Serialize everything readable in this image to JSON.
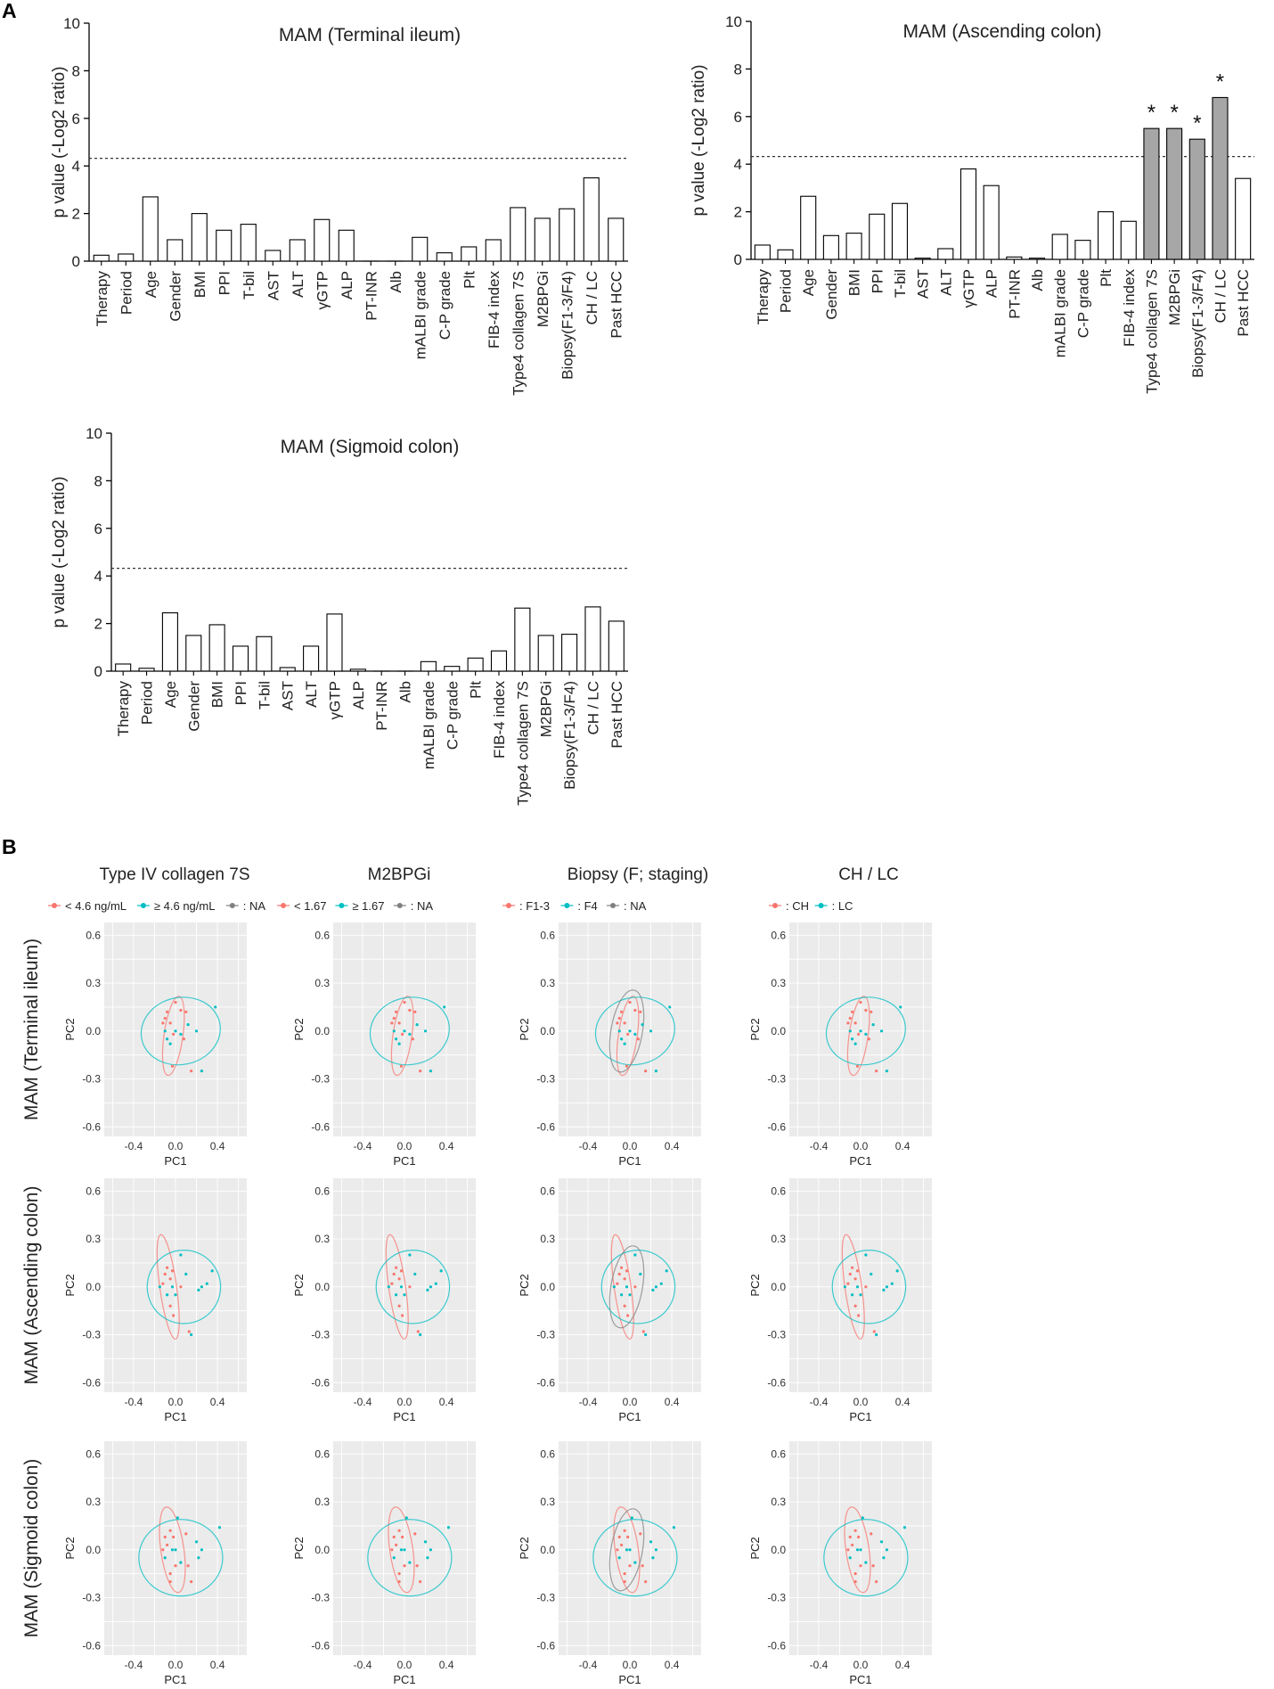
{
  "panel_a_label": "A",
  "panel_b_label": "B",
  "colors": {
    "red": "#f8766d",
    "teal": "#00bfc4",
    "gray": "#808080",
    "significant_bar": "#a6a6a6",
    "plot_bg": "#ebebeb",
    "grid": "#ffffff"
  },
  "bar_common": {
    "ylabel": "p value (-Log2 ratio)",
    "yticks": [
      "0",
      "2",
      "4",
      "6",
      "8",
      "10"
    ],
    "ylim": [
      0,
      10
    ],
    "threshold": 4.32,
    "categories": [
      "Therapy",
      "Period",
      "Age",
      "Gender",
      "BMI",
      "PPI",
      "T-bil",
      "AST",
      "ALT",
      "γGTP",
      "ALP",
      "PT-INR",
      "Alb",
      "mALBI grade",
      "C-P grade",
      "Plt",
      "FIB-4 index",
      "Type4 collagen 7S",
      "M2BPGi",
      "Biopsy(F1-3/F4)",
      "CH / LC",
      "Past HCC"
    ]
  },
  "pca_common": {
    "xlabel": "PC1",
    "ylabel": "PC2",
    "xticks": [
      "-0.4",
      "0.0",
      "0.4"
    ],
    "yticks": [
      "0.6",
      "0.3",
      "0.0",
      "-0.3",
      "-0.6"
    ]
  },
  "chart_data": [
    {
      "type": "bar",
      "title": "MAM (Terminal ileum)",
      "values": [
        0.25,
        0.3,
        2.7,
        0.9,
        2.0,
        1.3,
        1.55,
        0.45,
        0.9,
        1.75,
        1.3,
        0,
        0,
        1.0,
        0.35,
        0.6,
        0.9,
        2.25,
        1.8,
        2.2,
        3.5,
        1.8
      ],
      "significant": [
        false,
        false,
        false,
        false,
        false,
        false,
        false,
        false,
        false,
        false,
        false,
        false,
        false,
        false,
        false,
        false,
        false,
        false,
        false,
        false,
        false,
        false
      ]
    },
    {
      "type": "bar",
      "title": "MAM (Ascending colon)",
      "values": [
        0.6,
        0.4,
        2.65,
        1.0,
        1.1,
        1.9,
        2.35,
        0.05,
        0.45,
        3.8,
        3.1,
        0.1,
        0.05,
        1.05,
        0.8,
        2.0,
        1.6,
        5.5,
        5.5,
        5.05,
        6.8,
        3.4
      ],
      "significant": [
        false,
        false,
        false,
        false,
        false,
        false,
        false,
        false,
        false,
        false,
        false,
        false,
        false,
        false,
        false,
        false,
        false,
        true,
        true,
        true,
        true,
        false
      ],
      "star": "*"
    },
    {
      "type": "bar",
      "title": "MAM (Sigmoid colon)",
      "values": [
        0.3,
        0.12,
        2.45,
        1.5,
        1.95,
        1.05,
        1.45,
        0.15,
        1.05,
        2.4,
        0.08,
        0,
        0,
        0.4,
        0.2,
        0.55,
        0.85,
        2.65,
        1.5,
        1.55,
        2.7,
        2.1
      ],
      "significant": [
        false,
        false,
        false,
        false,
        false,
        false,
        false,
        false,
        false,
        false,
        false,
        false,
        false,
        false,
        false,
        false,
        false,
        false,
        false,
        false,
        false,
        false
      ]
    },
    {
      "type": "scatter",
      "columns": [
        {
          "title": "Type IV collagen 7S",
          "legend": [
            {
              "label": "< 4.6 ng/mL",
              "color": "red"
            },
            {
              "label": "≥ 4.6 ng/mL",
              "color": "teal"
            },
            {
              "label": ": NA",
              "color": "gray"
            }
          ]
        },
        {
          "title": "M2BPGi",
          "legend": [
            {
              "label": "< 1.67",
              "color": "red"
            },
            {
              "label": "≥ 1.67",
              "color": "teal"
            },
            {
              "label": ": NA",
              "color": "gray"
            }
          ]
        },
        {
          "title": "Biopsy (F; staging)",
          "legend": [
            {
              "label": ": F1-3",
              "color": "red"
            },
            {
              "label": ": F4",
              "color": "teal"
            },
            {
              "label": ": NA",
              "color": "gray"
            }
          ]
        },
        {
          "title": "CH / LC",
          "legend": [
            {
              "label": ": CH",
              "color": "red"
            },
            {
              "label": ": LC",
              "color": "teal"
            }
          ]
        }
      ],
      "rows": [
        {
          "title": "MAM (Terminal ileum)",
          "points": [
            [
              -0.1,
              0.08,
              "r"
            ],
            [
              -0.05,
              0.05,
              "r"
            ],
            [
              -0.08,
              0.12,
              "r"
            ],
            [
              0.05,
              0.13,
              "r"
            ],
            [
              0.1,
              0.12,
              "r"
            ],
            [
              0.0,
              0.18,
              "r"
            ],
            [
              -0.12,
              0.05,
              "r"
            ],
            [
              -0.02,
              -0.02,
              "r"
            ],
            [
              0.15,
              -0.25,
              "r"
            ],
            [
              -0.03,
              -0.22,
              "r"
            ],
            [
              0.08,
              -0.05,
              "r"
            ],
            [
              -0.1,
              0.0,
              "t"
            ],
            [
              -0.05,
              -0.08,
              "t"
            ],
            [
              0.0,
              0.0,
              "t"
            ],
            [
              0.12,
              0.04,
              "t"
            ],
            [
              0.2,
              0.0,
              "t"
            ],
            [
              0.38,
              0.15,
              "t"
            ],
            [
              0.25,
              -0.25,
              "t"
            ],
            [
              -0.08,
              -0.05,
              "t"
            ],
            [
              0.05,
              -0.02,
              "t"
            ]
          ],
          "ellipses": [
            {
              "group": "r",
              "cx": -0.02,
              "cy": -0.03,
              "rx": 0.09,
              "ry": 0.25,
              "rot": 8
            },
            {
              "group": "t",
              "cx": 0.05,
              "cy": 0.0,
              "rx": 0.38,
              "ry": 0.21,
              "rot": -12
            }
          ]
        },
        {
          "title": "MAM (Ascending colon)",
          "points": [
            [
              -0.1,
              0.08,
              "r"
            ],
            [
              -0.05,
              0.05,
              "r"
            ],
            [
              -0.08,
              0.12,
              "r"
            ],
            [
              -0.03,
              0.1,
              "r"
            ],
            [
              -0.12,
              0.02,
              "r"
            ],
            [
              -0.05,
              -0.12,
              "r"
            ],
            [
              -0.02,
              -0.18,
              "r"
            ],
            [
              0.05,
              0.0,
              "r"
            ],
            [
              0.13,
              -0.28,
              "r"
            ],
            [
              -0.15,
              0.0,
              "t"
            ],
            [
              -0.08,
              -0.05,
              "t"
            ],
            [
              0.0,
              -0.05,
              "t"
            ],
            [
              -0.03,
              0.0,
              "t"
            ],
            [
              0.1,
              0.08,
              "t"
            ],
            [
              0.22,
              -0.02,
              "t"
            ],
            [
              0.25,
              0.0,
              "t"
            ],
            [
              0.35,
              0.1,
              "t"
            ],
            [
              0.15,
              -0.3,
              "t"
            ],
            [
              0.05,
              0.2,
              "t"
            ],
            [
              0.3,
              0.02,
              "t"
            ]
          ],
          "ellipses": [
            {
              "group": "r",
              "cx": -0.07,
              "cy": 0.0,
              "rx": 0.08,
              "ry": 0.33,
              "rot": -8
            },
            {
              "group": "t",
              "cx": 0.08,
              "cy": 0.0,
              "rx": 0.35,
              "ry": 0.23,
              "rot": -15
            }
          ]
        },
        {
          "title": "MAM (Sigmoid colon)",
          "points": [
            [
              -0.1,
              0.08,
              "r"
            ],
            [
              -0.08,
              0.03,
              "r"
            ],
            [
              -0.05,
              0.12,
              "r"
            ],
            [
              -0.02,
              0.08,
              "r"
            ],
            [
              -0.12,
              0.0,
              "r"
            ],
            [
              -0.05,
              -0.15,
              "r"
            ],
            [
              0.0,
              -0.1,
              "r"
            ],
            [
              -0.05,
              -0.2,
              "r"
            ],
            [
              0.1,
              0.1,
              "r"
            ],
            [
              0.12,
              -0.1,
              "r"
            ],
            [
              0.15,
              -0.2,
              "r"
            ],
            [
              -0.1,
              -0.05,
              "t"
            ],
            [
              0.0,
              0.0,
              "t"
            ],
            [
              -0.03,
              0.0,
              "t"
            ],
            [
              0.05,
              -0.08,
              "t"
            ],
            [
              0.22,
              -0.05,
              "t"
            ],
            [
              0.25,
              0.0,
              "t"
            ],
            [
              0.42,
              0.14,
              "t"
            ],
            [
              0.2,
              0.05,
              "t"
            ],
            [
              0.02,
              0.2,
              "t"
            ]
          ],
          "ellipses": [
            {
              "group": "r",
              "cx": -0.03,
              "cy": 0.0,
              "rx": 0.11,
              "ry": 0.27,
              "rot": -8
            },
            {
              "group": "t",
              "cx": 0.05,
              "cy": -0.05,
              "rx": 0.4,
              "ry": 0.24,
              "rot": 0
            }
          ]
        }
      ]
    }
  ]
}
